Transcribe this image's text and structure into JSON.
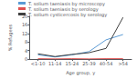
{
  "chart_data": {
    "type": "line",
    "categories": [
      "<1-10",
      "11-14",
      "15-24",
      "25-39",
      "40-54",
      ">54"
    ],
    "series": [
      {
        "name": "T. solium taeniasis by microscopy",
        "color": "#5b9bd5",
        "values": [
          2.0,
          1.0,
          2.0,
          3.5,
          9.0,
          11.5
        ]
      },
      {
        "name": "T. solium taeniasis by serology",
        "color": "#e05050",
        "values": [
          0.2,
          0.1,
          0.2,
          0.1,
          0.2,
          0.2
        ]
      },
      {
        "name": "T. solium cysticercosis by serology",
        "color": "#404040",
        "values": [
          2.5,
          1.2,
          2.2,
          3.0,
          5.0,
          19.5
        ]
      }
    ],
    "xlabel": "Age group, y",
    "ylabel": "% Refugees",
    "ylim": [
      0,
      20
    ],
    "yticks": [
      0,
      4,
      8,
      12,
      16,
      20
    ],
    "legend": "upper left",
    "grid": false
  }
}
